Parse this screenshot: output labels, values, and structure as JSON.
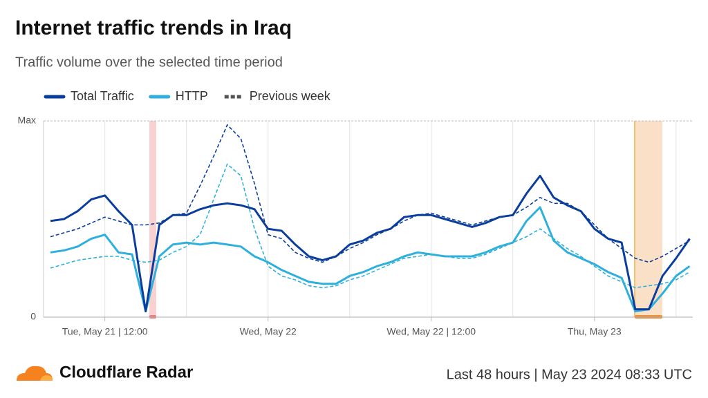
{
  "chart_data": {
    "type": "line",
    "title": "Internet traffic trends in Iraq",
    "subtitle": "Traffic volume over the selected time period",
    "legend_previous": "Previous week",
    "categories": [
      null,
      null,
      null,
      null,
      "Tue, May 21 | 12:00",
      null,
      null,
      null,
      null,
      null,
      null,
      null,
      null,
      null,
      null,
      null,
      "Wed, May 22",
      null,
      null,
      null,
      null,
      null,
      null,
      null,
      null,
      null,
      null,
      null,
      "Wed, May 22 | 12:00",
      null,
      null,
      null,
      null,
      null,
      null,
      null,
      null,
      null,
      null,
      null,
      "Thu, May 23",
      null,
      null,
      null,
      null,
      null,
      null,
      null
    ],
    "series": [
      {
        "name": "Total Traffic",
        "color": "#0a3d9c",
        "values": [
          49,
          50,
          54,
          60,
          62,
          54,
          47,
          3,
          47,
          52,
          52,
          55,
          57,
          58,
          57,
          55,
          45,
          44,
          37,
          31,
          29,
          31,
          37,
          39,
          43,
          45,
          51,
          52,
          52,
          50,
          48,
          46,
          48,
          51,
          52,
          63,
          72,
          61,
          57,
          54,
          45,
          40,
          38,
          4,
          4,
          21,
          30,
          40
        ],
        "previous_values": [
          41,
          43,
          45,
          48,
          51,
          49,
          47,
          47,
          48,
          52,
          53,
          67,
          82,
          98,
          91,
          68,
          42,
          40,
          33,
          30,
          28,
          31,
          35,
          38,
          42,
          45,
          49,
          52,
          53,
          51,
          49,
          47,
          49,
          51,
          52,
          56,
          61,
          58,
          58,
          54,
          47,
          40,
          35,
          30,
          28,
          31,
          35,
          39
        ]
      },
      {
        "name": "HTTP",
        "color": "#2fb0dc",
        "values": [
          33,
          34,
          36,
          40,
          42,
          33,
          32,
          3,
          31,
          37,
          38,
          37,
          38,
          37,
          36,
          31,
          28,
          24,
          21,
          18,
          17,
          17,
          21,
          23,
          26,
          28,
          31,
          33,
          32,
          31,
          31,
          31,
          33,
          36,
          38,
          49,
          56,
          39,
          33,
          30,
          27,
          23,
          20,
          3,
          4,
          12,
          21,
          26
        ],
        "previous_values": [
          25,
          27,
          29,
          30,
          31,
          31,
          29,
          28,
          29,
          33,
          36,
          42,
          60,
          78,
          72,
          45,
          26,
          21,
          19,
          16,
          15,
          16,
          19,
          21,
          24,
          27,
          30,
          31,
          32,
          31,
          30,
          30,
          32,
          35,
          38,
          41,
          45,
          40,
          35,
          31,
          26,
          21,
          18,
          15,
          16,
          17,
          19,
          23
        ]
      }
    ],
    "previous_color": "#555555",
    "ylim": [
      0,
      100
    ],
    "yticks": [
      0,
      {
        "value": 100,
        "label": "Max"
      }
    ],
    "grid": true,
    "footer": {
      "brand": "Cloudflare Radar",
      "info": "Last 48 hours | May 23 2024 08:33 UTC"
    }
  }
}
